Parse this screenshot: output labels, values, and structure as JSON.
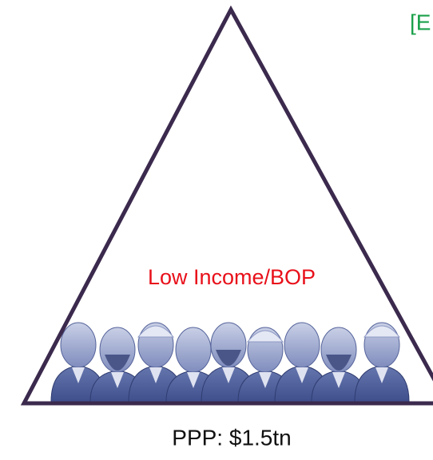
{
  "segment_label": "Low Income/BOP",
  "bottom_label": "PPP: $1.5tn",
  "corner_text": "[E"
}
